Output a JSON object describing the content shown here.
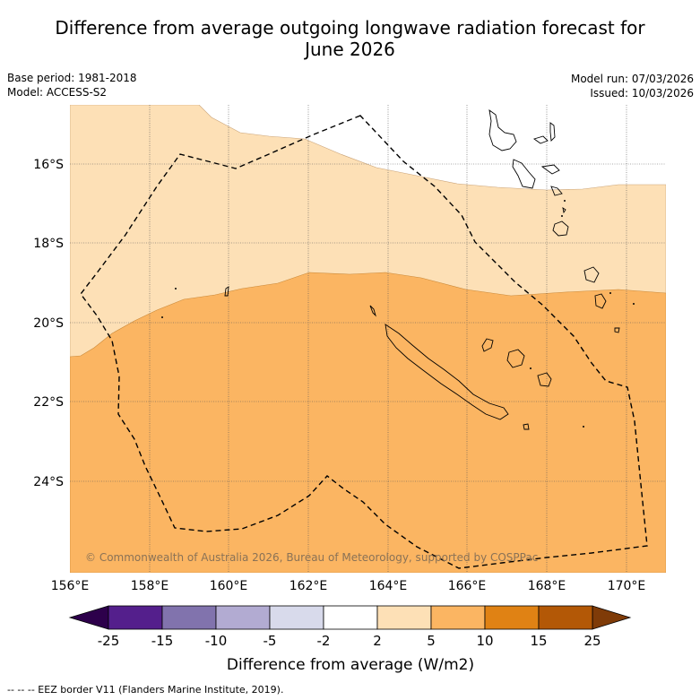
{
  "header": {
    "title_line1": "Difference from average outgoing longwave radiation forecast for",
    "title_line2": "June 2026",
    "base_period": "Base period: 1981-2018",
    "model": "Model: ACCESS-S2",
    "model_run": "Model run: 07/03/2026",
    "issued": "Issued: 10/03/2026"
  },
  "map": {
    "lat_labels": [
      "16°S",
      "18°S",
      "20°S",
      "22°S",
      "24°S"
    ],
    "lon_labels": [
      "156°E",
      "158°E",
      "160°E",
      "162°E",
      "164°E",
      "166°E",
      "168°E",
      "170°E"
    ],
    "copyright": "© Commonwealth of Australia 2026, Bureau of Meteorology, supported by COSPPac",
    "regions": [
      {
        "name": "2 to 5 W/m2 anomaly",
        "color": "#fde0b6"
      },
      {
        "name": "5 to 10 W/m2 anomaly",
        "color": "#fbb562"
      }
    ]
  },
  "colorbar": {
    "ticks": [
      "-25",
      "-15",
      "-10",
      "-5",
      "-2",
      "2",
      "5",
      "10",
      "15",
      "25"
    ],
    "colors": [
      "#541f8c",
      "#8173ad",
      "#b2abd2",
      "#d8daeb",
      "#ffffff",
      "#fde0b6",
      "#fbb562",
      "#e08214",
      "#b35806"
    ],
    "under_color": "#2d004b",
    "over_color": "#7f3b08",
    "label": "Difference from average (W/m2)"
  },
  "footer": {
    "legend_note": "--  --  -- EEZ border V11 (Flanders Marine Institute, 2019)."
  }
}
